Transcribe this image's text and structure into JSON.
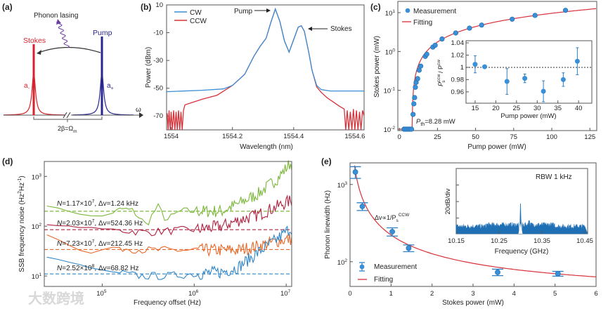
{
  "watermark": "大数跨境",
  "chart_data": [
    {
      "id": "a",
      "type": "diagram",
      "panel_label": "(a)",
      "labels": {
        "phonon_lasing": "Phonon lasing",
        "stokes": "Stokes",
        "pump": "Pump",
        "a_minus": "a",
        "a_minus_sub": "-",
        "a_plus": "a",
        "a_plus_sub": "+",
        "omega": "ω",
        "spacing": "2β=Ω",
        "spacing_sub": "m"
      },
      "colors": {
        "stokes": "#d6232b",
        "pump": "#27278f",
        "phonon": "#6b3fa0"
      }
    },
    {
      "id": "b",
      "type": "line",
      "panel_label": "(b)",
      "xlabel": "Wavelength (nm)",
      "ylabel": "Power (dBm)",
      "xlim": [
        1553.985,
        1554.63
      ],
      "ylim": [
        -80,
        10
      ],
      "xticks": [
        1554,
        1554.2,
        1554.4,
        1554.6
      ],
      "xtick_labels": [
        "1554",
        "1554.2",
        "1554.4",
        "1554.6"
      ],
      "yticks": [
        10,
        -10,
        -30,
        -50,
        -70
      ],
      "annotations": {
        "pump": "Pump",
        "stokes": "Stokes"
      },
      "legend": [
        "CW",
        "CCW"
      ],
      "legend_position": "top-left",
      "series": [
        {
          "name": "CW",
          "color": "#3a8fd6",
          "x": [
            1553.985,
            1554.1,
            1554.17,
            1554.2,
            1554.24,
            1554.27,
            1554.29,
            1554.31,
            1554.325,
            1554.34,
            1554.355,
            1554.37,
            1554.385,
            1554.4,
            1554.415,
            1554.425,
            1554.435,
            1554.45,
            1554.46,
            1554.475,
            1554.49,
            1554.52,
            1554.63
          ],
          "y": [
            -52.5,
            -51.5,
            -50.5,
            -48,
            -40,
            -27,
            -20,
            -14,
            -3,
            7,
            -2,
            -16,
            -24,
            -15,
            -6,
            -5,
            -9,
            -25,
            -37,
            -48,
            -51,
            -52,
            -52
          ]
        },
        {
          "name": "CCW",
          "color": "#d6323a",
          "x": [
            1553.987,
            1553.99,
            1553.993,
            1553.997,
            1554.0,
            1554.004,
            1554.008,
            1554.012,
            1554.016,
            1554.02,
            1554.024,
            1554.028,
            1554.032,
            1554.036,
            1554.04,
            1554.045,
            1554.1,
            1554.15,
            1554.2,
            1554.24,
            1554.27,
            1554.29,
            1554.31,
            1554.325,
            1554.34,
            1554.355,
            1554.37,
            1554.385,
            1554.4,
            1554.415,
            1554.425,
            1554.435,
            1554.45,
            1554.46,
            1554.475,
            1554.49,
            1554.51,
            1554.53,
            1554.55,
            1554.565,
            1554.57,
            1554.575,
            1554.58,
            1554.585,
            1554.59,
            1554.595,
            1554.6,
            1554.605,
            1554.61,
            1554.615,
            1554.62,
            1554.625,
            1554.63
          ],
          "y": [
            -68,
            -80,
            -66,
            -80,
            -67,
            -80,
            -66,
            -80,
            -67,
            -80,
            -66,
            -80,
            -67,
            -80,
            -66,
            -62,
            -58,
            -55,
            -48,
            -40,
            -27,
            -20,
            -14,
            -3,
            7,
            -2,
            -16,
            -24,
            -15,
            -6,
            -5,
            -9,
            -25,
            -37,
            -49,
            -53,
            -57,
            -60,
            -63,
            -65,
            -80,
            -66,
            -80,
            -67,
            -80,
            -65,
            -80,
            -66,
            -80,
            -67,
            -80,
            -66,
            -70
          ]
        }
      ]
    },
    {
      "id": "c",
      "type": "scatter",
      "panel_label": "(c)",
      "xlabel": "Pump power (mW)",
      "ylabel": "Stokes power (mW)",
      "xlim": [
        -1,
        129.5
      ],
      "ylim_log10": [
        -2,
        1.29
      ],
      "xticks": [
        0,
        25,
        50,
        75,
        100,
        125
      ],
      "yticks_exp": [
        -2,
        -1,
        0,
        1
      ],
      "legend": [
        "Measurement",
        "Fitting"
      ],
      "legend_position": "top-left",
      "threshold_label": "P",
      "threshold_sub": "th",
      "threshold_value": "=8.28 mW",
      "threshold_mw": 8.28,
      "fit": {
        "slope": 0.105,
        "threshold": 8.28,
        "color": "#d6323a"
      },
      "marker_color": "#3a8fd6",
      "x": [
        3,
        4,
        5,
        6,
        7,
        8,
        9,
        9.5,
        10,
        10.5,
        11,
        12,
        13,
        14,
        17,
        18,
        22,
        23.5,
        28,
        37,
        46,
        54,
        74,
        89,
        109
      ],
      "y": [
        0.01,
        0.01,
        0.01,
        0.01,
        0.01,
        0.01,
        0.024,
        0.045,
        0.065,
        0.12,
        0.16,
        0.2,
        0.33,
        0.42,
        0.75,
        0.85,
        1.3,
        1.45,
        2.1,
        3.0,
        4.0,
        4.8,
        6.8,
        8.5,
        11.5
      ],
      "inset": {
        "xlabel": "Pump power (mW)",
        "ylabel_main": "P",
        "ylabel_sup1": "ccw",
        "ylabel_sub": "s",
        "ylabel_sep": " / P",
        "ylabel_sup2": "cw",
        "xlim": [
          12.8,
          43.2
        ],
        "ylim": [
          0.9415,
          1.0435
        ],
        "xticks": [
          15,
          20,
          25,
          30,
          35,
          40
        ],
        "yticks": [
          0.96,
          0.98,
          1,
          1.02,
          1.04
        ],
        "ytick_labels": [
          "0.96",
          "0.98",
          "1",
          "1.02",
          "1.04"
        ],
        "reference_line": 1,
        "x": [
          15,
          17.3,
          22.7,
          27,
          31.5,
          36.3,
          39.7
        ],
        "y": [
          1.005,
          1.001,
          0.977,
          0.982,
          0.961,
          0.98,
          1.01
        ],
        "err": [
          0.014,
          0.002,
          0.021,
          0.007,
          0.017,
          0.011,
          0.022
        ]
      }
    },
    {
      "id": "d",
      "type": "line",
      "panel_label": "(d)",
      "xlabel": "Frequency offset (Hz)",
      "ylabel": "SSB frequency noise (Hz",
      "ylabel_sup": "2",
      "ylabel_mid": "Hz",
      "ylabel_sup2": "-1",
      "ylabel_end": ")",
      "xlim_log10": [
        4.37,
        7.06
      ],
      "ylim_log10": [
        0.79,
        3.3
      ],
      "xticks_exp": [
        5,
        6,
        7
      ],
      "yticks_exp": [
        1,
        2,
        3
      ],
      "series": [
        {
          "name": "N=1.17×10^7",
          "n_label": "N",
          "n_value": "=1.17×10",
          "n_exp": "7",
          "dv_label": ", Δv=1.24 kHz",
          "color": "#7cb83a",
          "level": 200,
          "x": [
            25000.0,
            70000.0,
            120000.0,
            150000.0,
            220000.0,
            300000.0,
            400000.0,
            500000.0,
            700000.0,
            1000000.0,
            2000000.0,
            3000000.0,
            5000000.0,
            8000000.0,
            11000000.0
          ],
          "y": [
            260,
            160,
            160,
            230,
            200,
            105,
            250,
            130,
            200,
            200,
            200,
            280,
            450,
            900,
            1800
          ]
        },
        {
          "name": "N=2.03×10^7",
          "n_label": "N",
          "n_value": "=2.03×10",
          "n_exp": "7",
          "dv_label": ", Δv=524.36 Hz",
          "color": "#b0213f",
          "level": 85,
          "x": [
            25000.0,
            100000.0,
            300000.0,
            500000.0,
            1000000.0,
            2000000.0,
            3000000.0,
            5000000.0,
            8000000.0,
            11000000.0
          ],
          "y": [
            105,
            90,
            75,
            80,
            85,
            100,
            130,
            170,
            250,
            320
          ]
        },
        {
          "name": "N=7.23×10^7",
          "n_label": "N",
          "n_value": "=7.23×10",
          "n_exp": "7",
          "dv_label": ", Δv=212.45 Hz",
          "color": "#e8692a",
          "level": 34,
          "x": [
            25000.0,
            70000.0,
            130000.0,
            300000.0,
            1000000.0,
            3000000.0,
            5000000.0,
            8000000.0,
            11000000.0
          ],
          "y": [
            68,
            28,
            38,
            33,
            33,
            33,
            40,
            50,
            55
          ]
        },
        {
          "name": "N=2.52×10^8",
          "n_label": "N",
          "n_value": "=2.52×10",
          "n_exp": "8",
          "dv_label": ", Δv=68.82 Hz",
          "color": "#2f86c8",
          "level": 11,
          "x": [
            25000.0,
            100000.0,
            250000.0,
            500000.0,
            1000000.0,
            2000000.0,
            3000000.0,
            5000000.0,
            8000000.0,
            11000000.0
          ],
          "y": [
            24,
            13,
            10,
            10,
            11,
            12,
            15,
            30,
            55,
            90
          ]
        }
      ]
    },
    {
      "id": "e",
      "type": "scatter",
      "panel_label": "(e)",
      "xlabel": "Stokes power (mW)",
      "ylabel": "Phonon linewidth (Hz)",
      "xlim": [
        0,
        6
      ],
      "ylim_log10": [
        1.68,
        3.28
      ],
      "xticks": [
        0,
        1,
        2,
        3,
        4,
        5,
        6
      ],
      "yticks_exp": [
        2,
        3
      ],
      "legend": [
        "Measurement",
        "Fitting"
      ],
      "legend_position": "bottom-left",
      "annotation": "Δv∝1/P",
      "annotation_sub": "s",
      "annotation_sup": "CCW",
      "fit": {
        "A": 190,
        "B": 32,
        "color": "#d6323a"
      },
      "marker_color": "#3a8fd6",
      "x": [
        0.13,
        0.3,
        1.03,
        1.43,
        3.6,
        5.07
      ],
      "y": [
        1450,
        520,
        245,
        150,
        73,
        70
      ],
      "err": [
        250,
        60,
        30,
        15,
        7,
        5
      ],
      "inset": {
        "type": "area",
        "xlabel": "Frequency (GHz)",
        "ylabel": "20dB/div",
        "rbw_label": "RBW 1 kHz",
        "xlim": [
          10.15,
          10.45
        ],
        "ylim_db": [
          -79,
          0
        ],
        "xticks": [
          10.15,
          10.25,
          10.35,
          10.45
        ],
        "xtick_labels": [
          "10.15",
          "10.25",
          "10.35",
          "10.45"
        ],
        "ytick_db": [
          -60,
          -40,
          -20
        ],
        "center_ghz": 10.3,
        "peak_db": -6,
        "floor_db": -70,
        "side_peak_ghz": 10.32,
        "side_peak_db": -63,
        "color": "#1f6fb5"
      }
    }
  ]
}
